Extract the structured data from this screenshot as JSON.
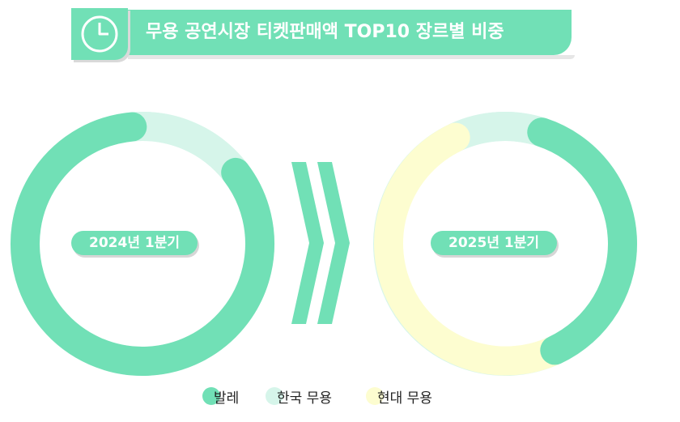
{
  "title": "무용 공연시장 티켓판매액 TOP10 장르별 비중",
  "icons": {
    "header": "clock-icon",
    "separator": "double-chevron-right-icon"
  },
  "colors": {
    "ballet": "#71e0b6",
    "korean_dance": "#d6f5ea",
    "modern_dance": "#fdfdd0",
    "title_bg": "#71e0b6"
  },
  "chart_data": [
    {
      "type": "pie",
      "subtype": "donut",
      "center_label": "2024년 1분기",
      "categories": [
        "발레",
        "한국 무용",
        "현대 무용"
      ],
      "values": [
        0.84,
        0.16,
        0.0
      ],
      "unit": "share"
    },
    {
      "type": "pie",
      "subtype": "donut",
      "center_label": "2025년 1분기",
      "categories": [
        "발레",
        "한국 무용",
        "현대 무용"
      ],
      "values": [
        0.38,
        0.12,
        0.5
      ],
      "unit": "share"
    }
  ],
  "legend": [
    {
      "label": "발레",
      "color": "#71e0b6"
    },
    {
      "label": "한국 무용",
      "color": "#d6f5ea"
    },
    {
      "label": "현대 무용",
      "color": "#fdfdd0"
    }
  ]
}
